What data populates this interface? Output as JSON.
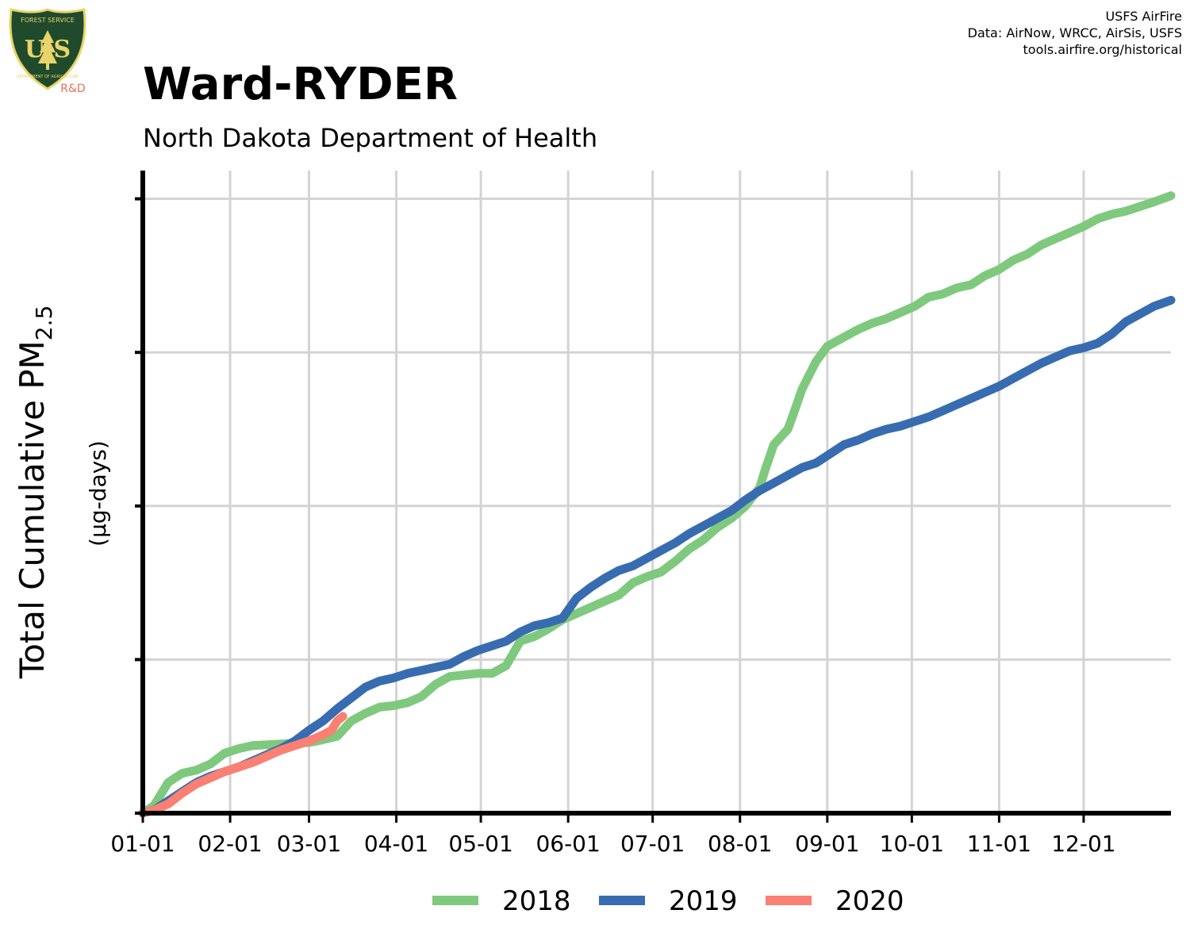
{
  "header": {
    "title": "Ward-RYDER",
    "subtitle": "North Dakota Department of Health",
    "credits": [
      "USFS AirFire",
      "Data: AirNow, WRCC, AirSis, USFS",
      "tools.airfire.org/historical"
    ]
  },
  "logo": {
    "top_text": "FOREST SERVICE",
    "letters": "U S",
    "bottom_text": "DEPARTMENT OF AGRICULTURE",
    "tag": "R&D",
    "colors": {
      "shield": "#1f4a2c",
      "gold": "#e8d46a",
      "tag": "#e8705a"
    }
  },
  "chart_data": {
    "type": "line",
    "ylabel": "Total Cumulative PM",
    "ylabel_subscript": "2.5",
    "ylabel_units": "(µg-days)",
    "x_axis": "day of year",
    "xlim": [
      1,
      366
    ],
    "ylim": [
      0,
      4.05
    ],
    "y_ticks": [
      0,
      1,
      2,
      3,
      4
    ],
    "y_tick_labels_shown": false,
    "x_ticks": [
      {
        "day": 1,
        "label": "01-01"
      },
      {
        "day": 32,
        "label": "02-01"
      },
      {
        "day": 60,
        "label": "03-01"
      },
      {
        "day": 91,
        "label": "04-01"
      },
      {
        "day": 121,
        "label": "05-01"
      },
      {
        "day": 152,
        "label": "06-01"
      },
      {
        "day": 182,
        "label": "07-01"
      },
      {
        "day": 213,
        "label": "08-01"
      },
      {
        "day": 244,
        "label": "09-01"
      },
      {
        "day": 274,
        "label": "10-01"
      },
      {
        "day": 305,
        "label": "11-01"
      },
      {
        "day": 335,
        "label": "12-01"
      }
    ],
    "grid": true,
    "legend": "bottom",
    "series": [
      {
        "name": "2018",
        "color": "#7fc97f",
        "points": [
          [
            1,
            0
          ],
          [
            5,
            0.05
          ],
          [
            10,
            0.2
          ],
          [
            15,
            0.26
          ],
          [
            20,
            0.28
          ],
          [
            25,
            0.32
          ],
          [
            30,
            0.39
          ],
          [
            35,
            0.42
          ],
          [
            40,
            0.44
          ],
          [
            50,
            0.45
          ],
          [
            60,
            0.46
          ],
          [
            63,
            0.47
          ],
          [
            70,
            0.5
          ],
          [
            75,
            0.6
          ],
          [
            80,
            0.65
          ],
          [
            85,
            0.69
          ],
          [
            90,
            0.7
          ],
          [
            95,
            0.72
          ],
          [
            100,
            0.76
          ],
          [
            105,
            0.84
          ],
          [
            110,
            0.89
          ],
          [
            120,
            0.91
          ],
          [
            125,
            0.91
          ],
          [
            130,
            0.96
          ],
          [
            135,
            1.12
          ],
          [
            140,
            1.15
          ],
          [
            145,
            1.2
          ],
          [
            150,
            1.26
          ],
          [
            155,
            1.3
          ],
          [
            160,
            1.34
          ],
          [
            165,
            1.38
          ],
          [
            170,
            1.42
          ],
          [
            175,
            1.5
          ],
          [
            180,
            1.54
          ],
          [
            185,
            1.57
          ],
          [
            190,
            1.64
          ],
          [
            195,
            1.72
          ],
          [
            200,
            1.78
          ],
          [
            205,
            1.86
          ],
          [
            210,
            1.92
          ],
          [
            215,
            2.0
          ],
          [
            220,
            2.12
          ],
          [
            222,
            2.24
          ],
          [
            225,
            2.4
          ],
          [
            230,
            2.5
          ],
          [
            232,
            2.6
          ],
          [
            235,
            2.76
          ],
          [
            240,
            2.94
          ],
          [
            244,
            3.04
          ],
          [
            250,
            3.1
          ],
          [
            255,
            3.15
          ],
          [
            260,
            3.19
          ],
          [
            265,
            3.22
          ],
          [
            270,
            3.26
          ],
          [
            275,
            3.3
          ],
          [
            280,
            3.36
          ],
          [
            285,
            3.38
          ],
          [
            290,
            3.42
          ],
          [
            295,
            3.44
          ],
          [
            300,
            3.5
          ],
          [
            305,
            3.54
          ],
          [
            310,
            3.6
          ],
          [
            315,
            3.64
          ],
          [
            320,
            3.7
          ],
          [
            325,
            3.74
          ],
          [
            330,
            3.78
          ],
          [
            335,
            3.82
          ],
          [
            340,
            3.87
          ],
          [
            345,
            3.9
          ],
          [
            350,
            3.92
          ],
          [
            355,
            3.95
          ],
          [
            360,
            3.98
          ],
          [
            366,
            4.02
          ]
        ]
      },
      {
        "name": "2019",
        "color": "#386cb0",
        "points": [
          [
            1,
            0
          ],
          [
            5,
            0.02
          ],
          [
            10,
            0.08
          ],
          [
            15,
            0.14
          ],
          [
            20,
            0.2
          ],
          [
            25,
            0.24
          ],
          [
            30,
            0.27
          ],
          [
            35,
            0.3
          ],
          [
            40,
            0.34
          ],
          [
            45,
            0.38
          ],
          [
            50,
            0.42
          ],
          [
            55,
            0.47
          ],
          [
            60,
            0.54
          ],
          [
            65,
            0.6
          ],
          [
            70,
            0.68
          ],
          [
            75,
            0.75
          ],
          [
            80,
            0.82
          ],
          [
            85,
            0.86
          ],
          [
            90,
            0.88
          ],
          [
            95,
            0.91
          ],
          [
            100,
            0.93
          ],
          [
            105,
            0.95
          ],
          [
            110,
            0.97
          ],
          [
            115,
            1.02
          ],
          [
            120,
            1.06
          ],
          [
            125,
            1.09
          ],
          [
            130,
            1.12
          ],
          [
            135,
            1.18
          ],
          [
            140,
            1.22
          ],
          [
            145,
            1.24
          ],
          [
            150,
            1.27
          ],
          [
            155,
            1.4
          ],
          [
            160,
            1.47
          ],
          [
            165,
            1.53
          ],
          [
            170,
            1.58
          ],
          [
            175,
            1.61
          ],
          [
            180,
            1.66
          ],
          [
            185,
            1.71
          ],
          [
            190,
            1.76
          ],
          [
            195,
            1.82
          ],
          [
            200,
            1.87
          ],
          [
            205,
            1.92
          ],
          [
            210,
            1.97
          ],
          [
            215,
            2.04
          ],
          [
            220,
            2.1
          ],
          [
            225,
            2.15
          ],
          [
            230,
            2.2
          ],
          [
            235,
            2.25
          ],
          [
            240,
            2.28
          ],
          [
            245,
            2.34
          ],
          [
            250,
            2.4
          ],
          [
            255,
            2.43
          ],
          [
            260,
            2.47
          ],
          [
            265,
            2.5
          ],
          [
            270,
            2.52
          ],
          [
            275,
            2.55
          ],
          [
            280,
            2.58
          ],
          [
            285,
            2.62
          ],
          [
            290,
            2.66
          ],
          [
            295,
            2.7
          ],
          [
            300,
            2.74
          ],
          [
            305,
            2.78
          ],
          [
            310,
            2.83
          ],
          [
            315,
            2.88
          ],
          [
            320,
            2.93
          ],
          [
            325,
            2.97
          ],
          [
            330,
            3.01
          ],
          [
            335,
            3.03
          ],
          [
            340,
            3.06
          ],
          [
            345,
            3.12
          ],
          [
            350,
            3.2
          ],
          [
            355,
            3.25
          ],
          [
            360,
            3.3
          ],
          [
            366,
            3.34
          ]
        ]
      },
      {
        "name": "2020",
        "color": "#f98072",
        "points": [
          [
            1,
            0
          ],
          [
            5,
            0.02
          ],
          [
            10,
            0.06
          ],
          [
            15,
            0.13
          ],
          [
            20,
            0.19
          ],
          [
            25,
            0.23
          ],
          [
            30,
            0.27
          ],
          [
            35,
            0.3
          ],
          [
            40,
            0.33
          ],
          [
            45,
            0.37
          ],
          [
            50,
            0.41
          ],
          [
            55,
            0.44
          ],
          [
            60,
            0.47
          ],
          [
            65,
            0.51
          ],
          [
            68,
            0.54
          ],
          [
            70,
            0.6
          ],
          [
            72,
            0.63
          ]
        ]
      }
    ]
  }
}
